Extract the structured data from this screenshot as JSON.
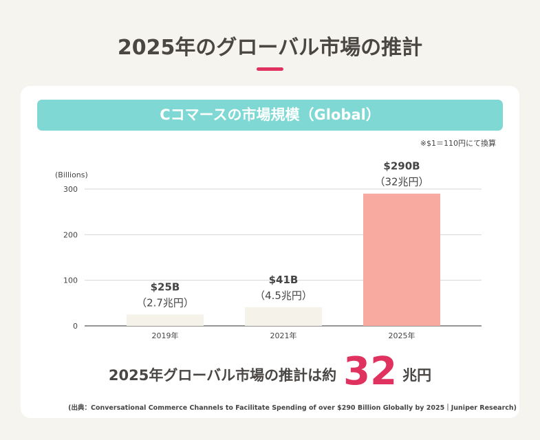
{
  "title": "2025年のグローバル市場の推計",
  "banner": "Cコマースの市場規模（Global）",
  "note": "※$1＝110円にて換算",
  "summary": {
    "lead": "2025年グローバル市場の推計は約",
    "value": "32",
    "unit": "兆円"
  },
  "source": "(出典：Conversational Commerce Channels to Facilitate Spending of over $290 Billion Globally by 2025｜Juniper Research)",
  "colors": {
    "accent": "#e0325f",
    "banner": "#7fd8d3",
    "bar_highlight": "#f8aaa0",
    "bar_default": "#f5f2ea"
  },
  "chart_data": {
    "type": "bar",
    "ylabel": "(Billions)",
    "categories": [
      "2019年",
      "2021年",
      "2025年"
    ],
    "values": [
      25,
      41,
      290
    ],
    "labels": [
      [
        "$25B",
        "（2.7兆円）"
      ],
      [
        "$41B",
        "（4.5兆円）"
      ],
      [
        "$290B",
        "（32兆円）"
      ]
    ],
    "highlight": [
      false,
      false,
      true
    ],
    "ylim": [
      0,
      300
    ],
    "yticks": [
      0,
      100,
      200,
      300
    ],
    "grid": true
  }
}
